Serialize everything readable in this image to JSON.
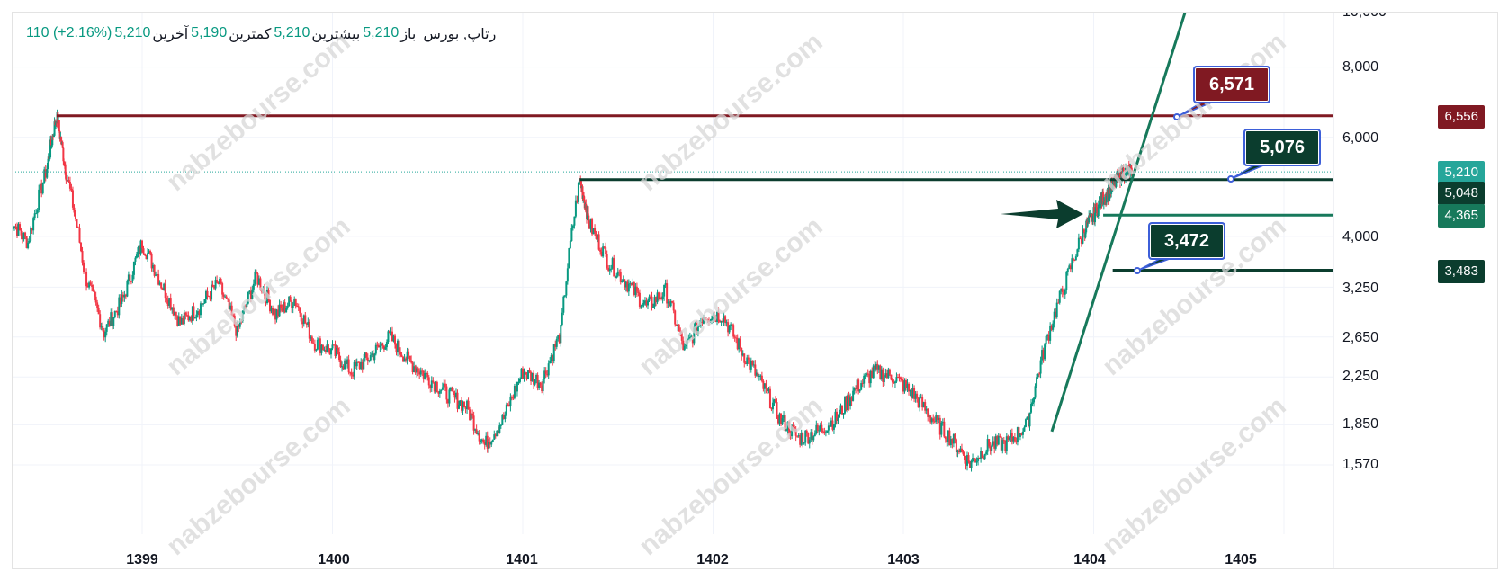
{
  "legend": {
    "symbol": "رتاپ, بورس",
    "open_label": "باز",
    "open_value": "5,210",
    "high_label": "بیشترین",
    "high_value": "5,210",
    "low_label": "کمترین",
    "low_value": "5,190",
    "last_label": "آخرین",
    "last_value": "5,210",
    "change": "110 (+2.16%)"
  },
  "watermark": "nabzebourse.com",
  "colors": {
    "up": "#089981",
    "down": "#f23645",
    "resistance_red": "#801922",
    "support_green": "#0b3d2e",
    "mid_green": "#17795b",
    "last_price": "#26a69a",
    "callout_border": "#3d5fd9"
  },
  "chart_data": {
    "type": "line",
    "scale": "log",
    "x_ticks": [
      "1399",
      "1400",
      "1401",
      "1402",
      "1403",
      "1404",
      "1405"
    ],
    "y_ticks": [
      "10,000",
      "8,000",
      "6,000",
      "4,000",
      "3,250",
      "2,650",
      "2,250",
      "1,850",
      "1,570"
    ],
    "ylim": [
      1400,
      10000
    ],
    "series": [
      {
        "x": [
          1398.3,
          1398.4,
          1398.5,
          1398.55,
          1398.6,
          1398.7,
          1398.8,
          1398.9,
          1399.0,
          1399.1,
          1399.2,
          1399.3,
          1399.4,
          1399.5,
          1399.6,
          1399.7,
          1399.8,
          1399.9,
          1400.0,
          1400.1,
          1400.2,
          1400.3,
          1400.4,
          1400.5,
          1400.6,
          1400.7,
          1400.8,
          1400.9,
          1401.0,
          1401.1,
          1401.2,
          1401.3,
          1401.35,
          1401.45,
          1401.55,
          1401.65,
          1401.75,
          1401.85,
          1401.95,
          1402.05,
          1402.15,
          1402.25,
          1402.35,
          1402.45,
          1402.55,
          1402.65,
          1402.75,
          1402.85,
          1402.95,
          1403.05,
          1403.15,
          1403.25,
          1403.35,
          1403.45,
          1403.55,
          1403.65,
          1403.75,
          1403.85,
          1403.95,
          1404.0,
          1404.05,
          1404.1,
          1404.15,
          1404.2
        ],
        "values": [
          4300,
          3900,
          5300,
          6550,
          5200,
          3400,
          2700,
          3100,
          3900,
          3300,
          2800,
          3000,
          3300,
          2700,
          3400,
          2900,
          3100,
          2600,
          2500,
          2300,
          2450,
          2650,
          2400,
          2250,
          2100,
          2000,
          1700,
          1900,
          2300,
          2200,
          2700,
          5048,
          4200,
          3600,
          3300,
          3000,
          3200,
          2500,
          2900,
          2900,
          2500,
          2200,
          1900,
          1750,
          1800,
          1900,
          2150,
          2300,
          2250,
          2100,
          1900,
          1750,
          1580,
          1700,
          1720,
          1850,
          2600,
          3300,
          4100,
          4365,
          4700,
          4900,
          5200,
          5210
        ]
      }
    ],
    "levels": [
      {
        "value": 6556,
        "label": "6,556"
      },
      {
        "value": 5048,
        "label": "5,048"
      },
      {
        "value": 4365,
        "label": "4,365"
      },
      {
        "value": 3483,
        "label": "3,483"
      }
    ],
    "last_price": {
      "value": 5210,
      "label": "5,210"
    },
    "callouts": [
      "6,571",
      "5,076",
      "3,472"
    ]
  }
}
